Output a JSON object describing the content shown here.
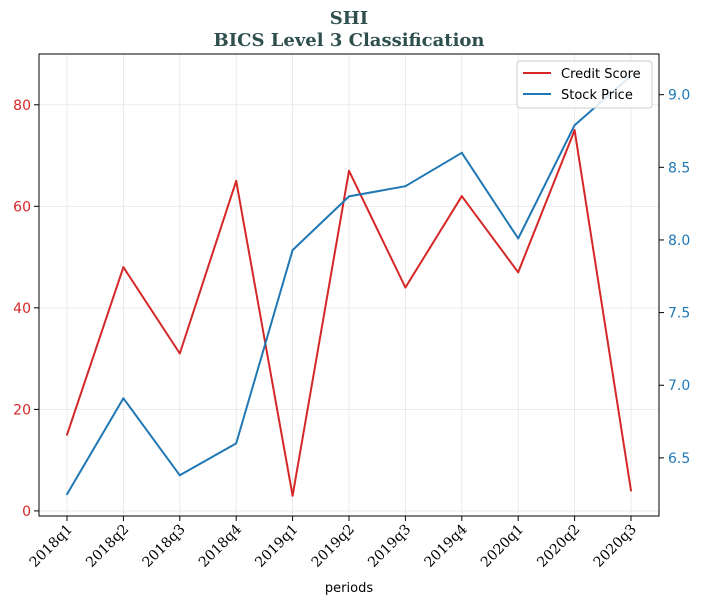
{
  "chart_data": {
    "type": "line",
    "title": "SHI",
    "subtitle": "BICS Level 3 Classification",
    "xlabel": "periods",
    "categories": [
      "2018q1",
      "2018q2",
      "2018q3",
      "2018q4",
      "2019q1",
      "2019q2",
      "2019q3",
      "2019q4",
      "2020q1",
      "2020q2",
      "2020q3"
    ],
    "series": [
      {
        "name": "Credit Score",
        "axis": "left",
        "color": "#d62728",
        "values": [
          15,
          48,
          31,
          65,
          3,
          67,
          44,
          62,
          47,
          75,
          4
        ]
      },
      {
        "name": "Stock Price",
        "axis": "right",
        "color": "#1f77b4",
        "values": [
          6.25,
          6.91,
          6.38,
          6.6,
          7.93,
          8.3,
          8.37,
          8.6,
          8.01,
          8.79,
          9.13
        ]
      }
    ],
    "y_left": {
      "lim": [
        -1,
        90
      ],
      "ticks": [
        0,
        20,
        40,
        60,
        80
      ],
      "color": "#d62728"
    },
    "y_right": {
      "lim": [
        6.1,
        9.28
      ],
      "ticks": [
        "6.5",
        "7.0",
        "7.5",
        "8.0",
        "8.5",
        "9.0"
      ],
      "color": "#1f77b4"
    },
    "grid": true,
    "legend_position": "top-right"
  }
}
